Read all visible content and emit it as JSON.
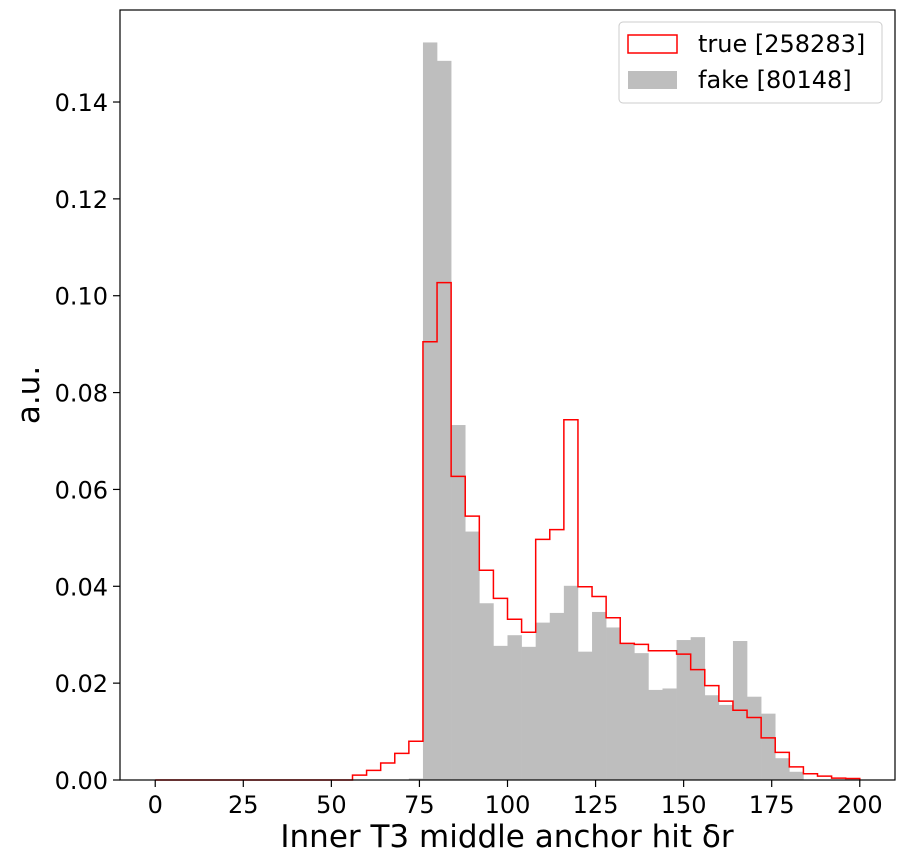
{
  "chart_data": {
    "type": "histogram",
    "xlabel": "Inner T3 middle anchor hit δr",
    "ylabel": "a.u.",
    "xlim": [
      -10,
      210
    ],
    "ylim": [
      0,
      0.159
    ],
    "x_ticks": [
      "0",
      "25",
      "50",
      "75",
      "100",
      "125",
      "150",
      "175",
      "200"
    ],
    "y_ticks": [
      "0.00",
      "0.02",
      "0.04",
      "0.06",
      "0.08",
      "0.10",
      "0.12",
      "0.14"
    ],
    "grid": false,
    "legend_position": "top-right",
    "bin_edges": [
      0,
      4,
      8,
      12,
      16,
      20,
      24,
      28,
      32,
      36,
      40,
      44,
      48,
      52,
      56,
      60,
      64,
      68,
      72,
      76,
      80,
      84,
      88,
      92,
      96,
      100,
      104,
      108,
      112,
      116,
      120,
      124,
      128,
      132,
      136,
      140,
      144,
      148,
      152,
      156,
      160,
      164,
      168,
      172,
      176,
      180,
      184,
      188,
      192,
      196,
      200
    ],
    "series": [
      {
        "name": "true [258283]",
        "style": "step",
        "color": "#ff0000",
        "values": [
          0,
          0,
          0,
          0,
          0,
          0,
          0,
          0,
          0,
          0,
          0,
          0,
          0,
          0,
          0.001,
          0.002,
          0.0035,
          0.0055,
          0.008,
          0.0905,
          0.1027,
          0.0627,
          0.0545,
          0.0433,
          0.0375,
          0.0332,
          0.0305,
          0.0497,
          0.0517,
          0.0744,
          0.0399,
          0.0379,
          0.0335,
          0.0282,
          0.028,
          0.0267,
          0.0267,
          0.026,
          0.0228,
          0.0195,
          0.0163,
          0.0144,
          0.0129,
          0.0087,
          0.0057,
          0.0027,
          0.0013,
          0.0008,
          0.0004,
          0.0003
        ]
      },
      {
        "name": "fake [80148]",
        "style": "filled",
        "color": "#bebebe",
        "values": [
          0,
          0,
          0,
          0,
          0,
          0,
          0,
          0,
          0,
          0,
          0,
          0,
          0,
          0,
          0,
          0,
          0,
          0,
          0.0003,
          0.1523,
          0.1485,
          0.0733,
          0.0513,
          0.0365,
          0.0277,
          0.0299,
          0.0275,
          0.0325,
          0.0345,
          0.0401,
          0.0265,
          0.0347,
          0.0315,
          0.0281,
          0.0262,
          0.0186,
          0.0189,
          0.0289,
          0.0295,
          0.0175,
          0.0155,
          0.0287,
          0.0172,
          0.0137,
          0.0045,
          0.0017,
          0,
          0,
          0,
          0
        ]
      }
    ]
  }
}
